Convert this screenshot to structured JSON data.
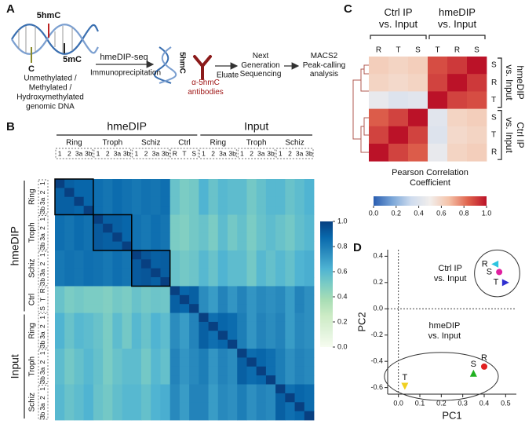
{
  "panels": {
    "a": "A",
    "b": "B",
    "c": "C",
    "d": "D"
  },
  "schematic": {
    "dna_top": "5hmC",
    "dna_left": "C",
    "dna_right": "5mC",
    "dna_caption": [
      "Unmethylated /",
      "Methylated /",
      "Hydroxymethylated",
      "genomic DNA"
    ],
    "method": "hmeDIP-seq",
    "step": "Immunoprecipitation",
    "bound_label": "5hmC",
    "antibody": "α-5hmC\nantibodies",
    "eluate": "Eluate",
    "sequencing": "Next\nGeneration\nSequencing",
    "analysis": "MACS2\nPeak-calling\nanalysis"
  },
  "chart_data": [
    {
      "type": "heatmap",
      "super_groups": [
        {
          "name": "hmeDIP",
          "groups": [
            {
              "name": "Ring",
              "samples": [
                "1",
                "2",
                "3a",
                "3b"
              ]
            },
            {
              "name": "Troph",
              "samples": [
                "1",
                "2",
                "3a",
                "3b"
              ]
            },
            {
              "name": "Schiz",
              "samples": [
                "1",
                "2",
                "3a",
                "3b"
              ]
            },
            {
              "name": "Ctrl",
              "samples": [
                "R",
                "T",
                "S"
              ]
            }
          ]
        },
        {
          "name": "Input",
          "groups": [
            {
              "name": "Ring",
              "samples": [
                "1",
                "2",
                "3a",
                "3b"
              ]
            },
            {
              "name": "Troph",
              "samples": [
                "1",
                "2",
                "3a",
                "3b"
              ]
            },
            {
              "name": "Schiz",
              "samples": [
                "1",
                "2",
                "3a",
                "3b"
              ]
            }
          ]
        }
      ],
      "values": [
        [
          1,
          0.9,
          0.88,
          0.88,
          0.85,
          0.83,
          0.86,
          0.84,
          0.82,
          0.84,
          0.83,
          0.85,
          0.55,
          0.5,
          0.52,
          0.62,
          0.55,
          0.6,
          0.58,
          0.58,
          0.52,
          0.56,
          0.6,
          0.6,
          0.55,
          0.58,
          0.62
        ],
        [
          0.9,
          1,
          0.88,
          0.88,
          0.85,
          0.83,
          0.86,
          0.84,
          0.82,
          0.84,
          0.83,
          0.85,
          0.55,
          0.5,
          0.52,
          0.62,
          0.55,
          0.6,
          0.58,
          0.58,
          0.52,
          0.56,
          0.6,
          0.6,
          0.55,
          0.58,
          0.62
        ],
        [
          0.9,
          0.9,
          1,
          0.88,
          0.85,
          0.83,
          0.86,
          0.84,
          0.82,
          0.84,
          0.83,
          0.85,
          0.55,
          0.5,
          0.52,
          0.62,
          0.55,
          0.6,
          0.58,
          0.58,
          0.52,
          0.56,
          0.6,
          0.6,
          0.55,
          0.58,
          0.62
        ],
        [
          0.9,
          0.9,
          0.88,
          1,
          0.85,
          0.83,
          0.86,
          0.84,
          0.82,
          0.84,
          0.83,
          0.85,
          0.55,
          0.5,
          0.52,
          0.62,
          0.55,
          0.6,
          0.58,
          0.58,
          0.52,
          0.56,
          0.6,
          0.6,
          0.55,
          0.58,
          0.62
        ],
        [
          0.85,
          0.83,
          0.86,
          0.84,
          1,
          0.9,
          0.9,
          0.88,
          0.84,
          0.82,
          0.85,
          0.83,
          0.5,
          0.48,
          0.52,
          0.55,
          0.5,
          0.58,
          0.52,
          0.56,
          0.5,
          0.55,
          0.58,
          0.55,
          0.52,
          0.57,
          0.6
        ],
        [
          0.85,
          0.83,
          0.86,
          0.84,
          0.92,
          1,
          0.9,
          0.88,
          0.84,
          0.82,
          0.85,
          0.83,
          0.5,
          0.48,
          0.52,
          0.55,
          0.5,
          0.58,
          0.52,
          0.56,
          0.5,
          0.55,
          0.58,
          0.55,
          0.52,
          0.57,
          0.6
        ],
        [
          0.85,
          0.83,
          0.86,
          0.84,
          0.92,
          0.9,
          1,
          0.88,
          0.84,
          0.82,
          0.85,
          0.83,
          0.5,
          0.48,
          0.52,
          0.55,
          0.5,
          0.58,
          0.52,
          0.56,
          0.5,
          0.55,
          0.58,
          0.55,
          0.52,
          0.57,
          0.6
        ],
        [
          0.85,
          0.83,
          0.86,
          0.84,
          0.92,
          0.9,
          0.9,
          1,
          0.84,
          0.82,
          0.85,
          0.83,
          0.5,
          0.48,
          0.52,
          0.55,
          0.5,
          0.58,
          0.52,
          0.56,
          0.5,
          0.55,
          0.58,
          0.55,
          0.52,
          0.57,
          0.6
        ],
        [
          0.82,
          0.84,
          0.83,
          0.85,
          0.84,
          0.82,
          0.85,
          0.83,
          1,
          0.93,
          0.9,
          0.91,
          0.55,
          0.52,
          0.54,
          0.6,
          0.55,
          0.62,
          0.58,
          0.58,
          0.52,
          0.6,
          0.56,
          0.6,
          0.56,
          0.62,
          0.64
        ],
        [
          0.82,
          0.84,
          0.83,
          0.85,
          0.84,
          0.82,
          0.85,
          0.83,
          0.92,
          1,
          0.9,
          0.91,
          0.55,
          0.52,
          0.54,
          0.6,
          0.55,
          0.62,
          0.58,
          0.58,
          0.52,
          0.6,
          0.56,
          0.6,
          0.56,
          0.62,
          0.64
        ],
        [
          0.82,
          0.84,
          0.83,
          0.85,
          0.84,
          0.82,
          0.85,
          0.83,
          0.92,
          0.93,
          1,
          0.91,
          0.55,
          0.52,
          0.54,
          0.6,
          0.55,
          0.62,
          0.58,
          0.58,
          0.52,
          0.6,
          0.56,
          0.6,
          0.56,
          0.62,
          0.64
        ],
        [
          0.82,
          0.84,
          0.83,
          0.85,
          0.84,
          0.82,
          0.85,
          0.83,
          0.92,
          0.93,
          0.9,
          1,
          0.55,
          0.52,
          0.54,
          0.6,
          0.55,
          0.62,
          0.58,
          0.58,
          0.52,
          0.6,
          0.56,
          0.6,
          0.56,
          0.62,
          0.64
        ],
        [
          0.55,
          0.5,
          0.52,
          0.5,
          0.5,
          0.48,
          0.52,
          0.5,
          0.55,
          0.52,
          0.54,
          0.53,
          1,
          0.88,
          0.9,
          0.75,
          0.7,
          0.78,
          0.72,
          0.78,
          0.72,
          0.76,
          0.74,
          0.76,
          0.7,
          0.78,
          0.74
        ],
        [
          0.55,
          0.5,
          0.52,
          0.5,
          0.5,
          0.48,
          0.52,
          0.5,
          0.55,
          0.52,
          0.54,
          0.53,
          0.9,
          1,
          0.9,
          0.75,
          0.7,
          0.78,
          0.72,
          0.78,
          0.72,
          0.76,
          0.74,
          0.76,
          0.7,
          0.78,
          0.74
        ],
        [
          0.55,
          0.5,
          0.52,
          0.5,
          0.5,
          0.48,
          0.52,
          0.5,
          0.55,
          0.52,
          0.54,
          0.53,
          0.9,
          0.88,
          1,
          0.75,
          0.7,
          0.78,
          0.72,
          0.78,
          0.72,
          0.76,
          0.74,
          0.76,
          0.7,
          0.78,
          0.74
        ],
        [
          0.62,
          0.55,
          0.6,
          0.58,
          0.55,
          0.5,
          0.58,
          0.52,
          0.6,
          0.55,
          0.62,
          0.58,
          0.75,
          0.7,
          0.78,
          1,
          0.85,
          0.88,
          0.86,
          0.8,
          0.72,
          0.78,
          0.75,
          0.78,
          0.7,
          0.76,
          0.74
        ],
        [
          0.62,
          0.55,
          0.6,
          0.58,
          0.55,
          0.5,
          0.58,
          0.52,
          0.6,
          0.55,
          0.62,
          0.58,
          0.75,
          0.7,
          0.78,
          0.9,
          1,
          0.88,
          0.86,
          0.8,
          0.72,
          0.78,
          0.75,
          0.78,
          0.7,
          0.76,
          0.74
        ],
        [
          0.62,
          0.55,
          0.6,
          0.58,
          0.55,
          0.5,
          0.58,
          0.52,
          0.6,
          0.55,
          0.62,
          0.58,
          0.75,
          0.7,
          0.78,
          0.9,
          0.85,
          1,
          0.86,
          0.8,
          0.72,
          0.78,
          0.75,
          0.78,
          0.7,
          0.76,
          0.74
        ],
        [
          0.62,
          0.55,
          0.6,
          0.58,
          0.55,
          0.5,
          0.58,
          0.52,
          0.6,
          0.55,
          0.62,
          0.58,
          0.75,
          0.7,
          0.78,
          0.9,
          0.85,
          0.88,
          1,
          0.8,
          0.72,
          0.78,
          0.75,
          0.78,
          0.7,
          0.76,
          0.74
        ],
        [
          0.58,
          0.52,
          0.56,
          0.6,
          0.56,
          0.5,
          0.55,
          0.58,
          0.58,
          0.52,
          0.6,
          0.56,
          0.78,
          0.72,
          0.76,
          0.8,
          0.72,
          0.78,
          0.75,
          1,
          0.86,
          0.88,
          0.85,
          0.8,
          0.74,
          0.78,
          0.76
        ],
        [
          0.58,
          0.52,
          0.56,
          0.6,
          0.56,
          0.5,
          0.55,
          0.58,
          0.58,
          0.52,
          0.6,
          0.56,
          0.78,
          0.72,
          0.76,
          0.8,
          0.72,
          0.78,
          0.75,
          0.9,
          1,
          0.88,
          0.85,
          0.8,
          0.74,
          0.78,
          0.76
        ],
        [
          0.58,
          0.52,
          0.56,
          0.6,
          0.56,
          0.5,
          0.55,
          0.58,
          0.58,
          0.52,
          0.6,
          0.56,
          0.78,
          0.72,
          0.76,
          0.8,
          0.72,
          0.78,
          0.75,
          0.9,
          0.86,
          1,
          0.85,
          0.8,
          0.74,
          0.78,
          0.76
        ],
        [
          0.58,
          0.52,
          0.56,
          0.6,
          0.56,
          0.5,
          0.55,
          0.58,
          0.58,
          0.52,
          0.6,
          0.56,
          0.78,
          0.72,
          0.76,
          0.8,
          0.72,
          0.78,
          0.75,
          0.9,
          0.86,
          0.88,
          1,
          0.8,
          0.74,
          0.78,
          0.76
        ],
        [
          0.6,
          0.55,
          0.58,
          0.62,
          0.55,
          0.52,
          0.57,
          0.6,
          0.6,
          0.56,
          0.62,
          0.64,
          0.76,
          0.7,
          0.78,
          0.78,
          0.7,
          0.76,
          0.74,
          0.8,
          0.74,
          0.78,
          0.76,
          1,
          0.85,
          0.88,
          0.86
        ],
        [
          0.6,
          0.55,
          0.58,
          0.62,
          0.55,
          0.52,
          0.57,
          0.6,
          0.6,
          0.56,
          0.62,
          0.64,
          0.76,
          0.7,
          0.78,
          0.78,
          0.7,
          0.76,
          0.74,
          0.8,
          0.74,
          0.78,
          0.76,
          0.9,
          1,
          0.88,
          0.86
        ],
        [
          0.6,
          0.55,
          0.58,
          0.62,
          0.55,
          0.52,
          0.57,
          0.6,
          0.6,
          0.56,
          0.62,
          0.64,
          0.76,
          0.7,
          0.78,
          0.78,
          0.7,
          0.76,
          0.74,
          0.8,
          0.74,
          0.78,
          0.76,
          0.9,
          0.85,
          1,
          0.86
        ],
        [
          0.6,
          0.55,
          0.58,
          0.62,
          0.55,
          0.52,
          0.57,
          0.6,
          0.6,
          0.56,
          0.62,
          0.64,
          0.76,
          0.7,
          0.78,
          0.78,
          0.7,
          0.76,
          0.74,
          0.8,
          0.74,
          0.78,
          0.76,
          0.9,
          0.85,
          0.88,
          1
        ]
      ],
      "zlim": [
        0,
        1
      ],
      "colormap": [
        "#f7fcf0",
        "#e0f3db",
        "#ccebc5",
        "#a8ddb5",
        "#7bccc4",
        "#4eb3d3",
        "#2b8cbe",
        "#0868ac",
        "#084081"
      ],
      "colorbar_ticks": [
        {
          "value": 0,
          "label": "0.0"
        },
        {
          "value": 0.2,
          "label": "0.2"
        },
        {
          "value": 0.4,
          "label": "0.4"
        },
        {
          "value": 0.6,
          "label": "0.6"
        },
        {
          "value": 0.8,
          "label": "0.8"
        },
        {
          "value": 1,
          "label": "1.0"
        }
      ]
    },
    {
      "type": "heatmap",
      "col_groups": [
        {
          "name": "Ctrl IP\nvs. Input",
          "samples": [
            "R",
            "T",
            "S"
          ]
        },
        {
          "name": "hmeDIP\nvs. Input",
          "samples": [
            "T",
            "R",
            "S"
          ]
        }
      ],
      "row_groups": [
        {
          "name": "hmeDIP\nvs. Input",
          "samples": [
            "S",
            "R",
            "T"
          ]
        },
        {
          "name": "Ctrl IP\nvs. Input",
          "samples": [
            "S",
            "T",
            "R"
          ]
        }
      ],
      "values": [
        [
          0.62,
          0.6,
          0.62,
          0.88,
          0.92,
          1
        ],
        [
          0.6,
          0.58,
          0.6,
          0.9,
          1,
          0.92
        ],
        [
          0.45,
          0.4,
          0.42,
          1,
          0.9,
          0.88
        ],
        [
          0.85,
          0.9,
          1,
          0.42,
          0.6,
          0.62
        ],
        [
          0.9,
          1,
          0.9,
          0.4,
          0.58,
          0.6
        ],
        [
          1,
          0.9,
          0.85,
          0.45,
          0.6,
          0.62
        ]
      ],
      "zlim": [
        0,
        1
      ],
      "colormap": [
        "#2a5db0",
        "#7aa6d8",
        "#cfdcee",
        "#f2eeec",
        "#f4c2a8",
        "#e0644e",
        "#bb1228"
      ],
      "colorbar_title": "Pearson Correlation Coefficient",
      "colorbar_ticks": [
        {
          "value": 0,
          "label": "0.0"
        },
        {
          "value": 0.2,
          "label": "0.2"
        },
        {
          "value": 0.4,
          "label": "0.4"
        },
        {
          "value": 0.6,
          "label": "0.6"
        },
        {
          "value": 0.8,
          "label": "0.8"
        },
        {
          "value": 1,
          "label": "1.0"
        }
      ]
    },
    {
      "type": "scatter",
      "x_label": "PC1",
      "y_label": "PC2",
      "xlim": [
        -0.05,
        0.55
      ],
      "ylim": [
        -0.65,
        0.45
      ],
      "xticks": [
        {
          "value": 0,
          "label": "0.0"
        },
        0.1,
        0.2,
        0.3,
        0.4,
        0.5
      ],
      "yticks": [
        0.4,
        0.2,
        {
          "value": 0,
          "label": "0.0"
        },
        -0.2,
        -0.4,
        -0.6
      ],
      "zero_lines": true,
      "groups": [
        {
          "name": "Ctrl IP\nvs. Input",
          "points": [
            {
              "label": "R",
              "x": 0.45,
              "y": 0.34,
              "color": "#2ec4e0",
              "marker": "triangle-left"
            },
            {
              "label": "S",
              "x": 0.47,
              "y": 0.28,
              "color": "#e020a0",
              "marker": "circle"
            },
            {
              "label": "T",
              "x": 0.5,
              "y": 0.2,
              "color": "#3030d0",
              "marker": "triangle-right"
            }
          ]
        },
        {
          "name": "hmeDIP\nvs. Input",
          "points": [
            {
              "label": "R",
              "x": 0.4,
              "y": -0.44,
              "color": "#e02020",
              "marker": "circle"
            },
            {
              "label": "S",
              "x": 0.35,
              "y": -0.49,
              "color": "#20b020",
              "marker": "triangle-up"
            },
            {
              "label": "T",
              "x": 0.03,
              "y": -0.59,
              "color": "#f0d020",
              "marker": "triangle-down"
            }
          ]
        }
      ]
    }
  ]
}
